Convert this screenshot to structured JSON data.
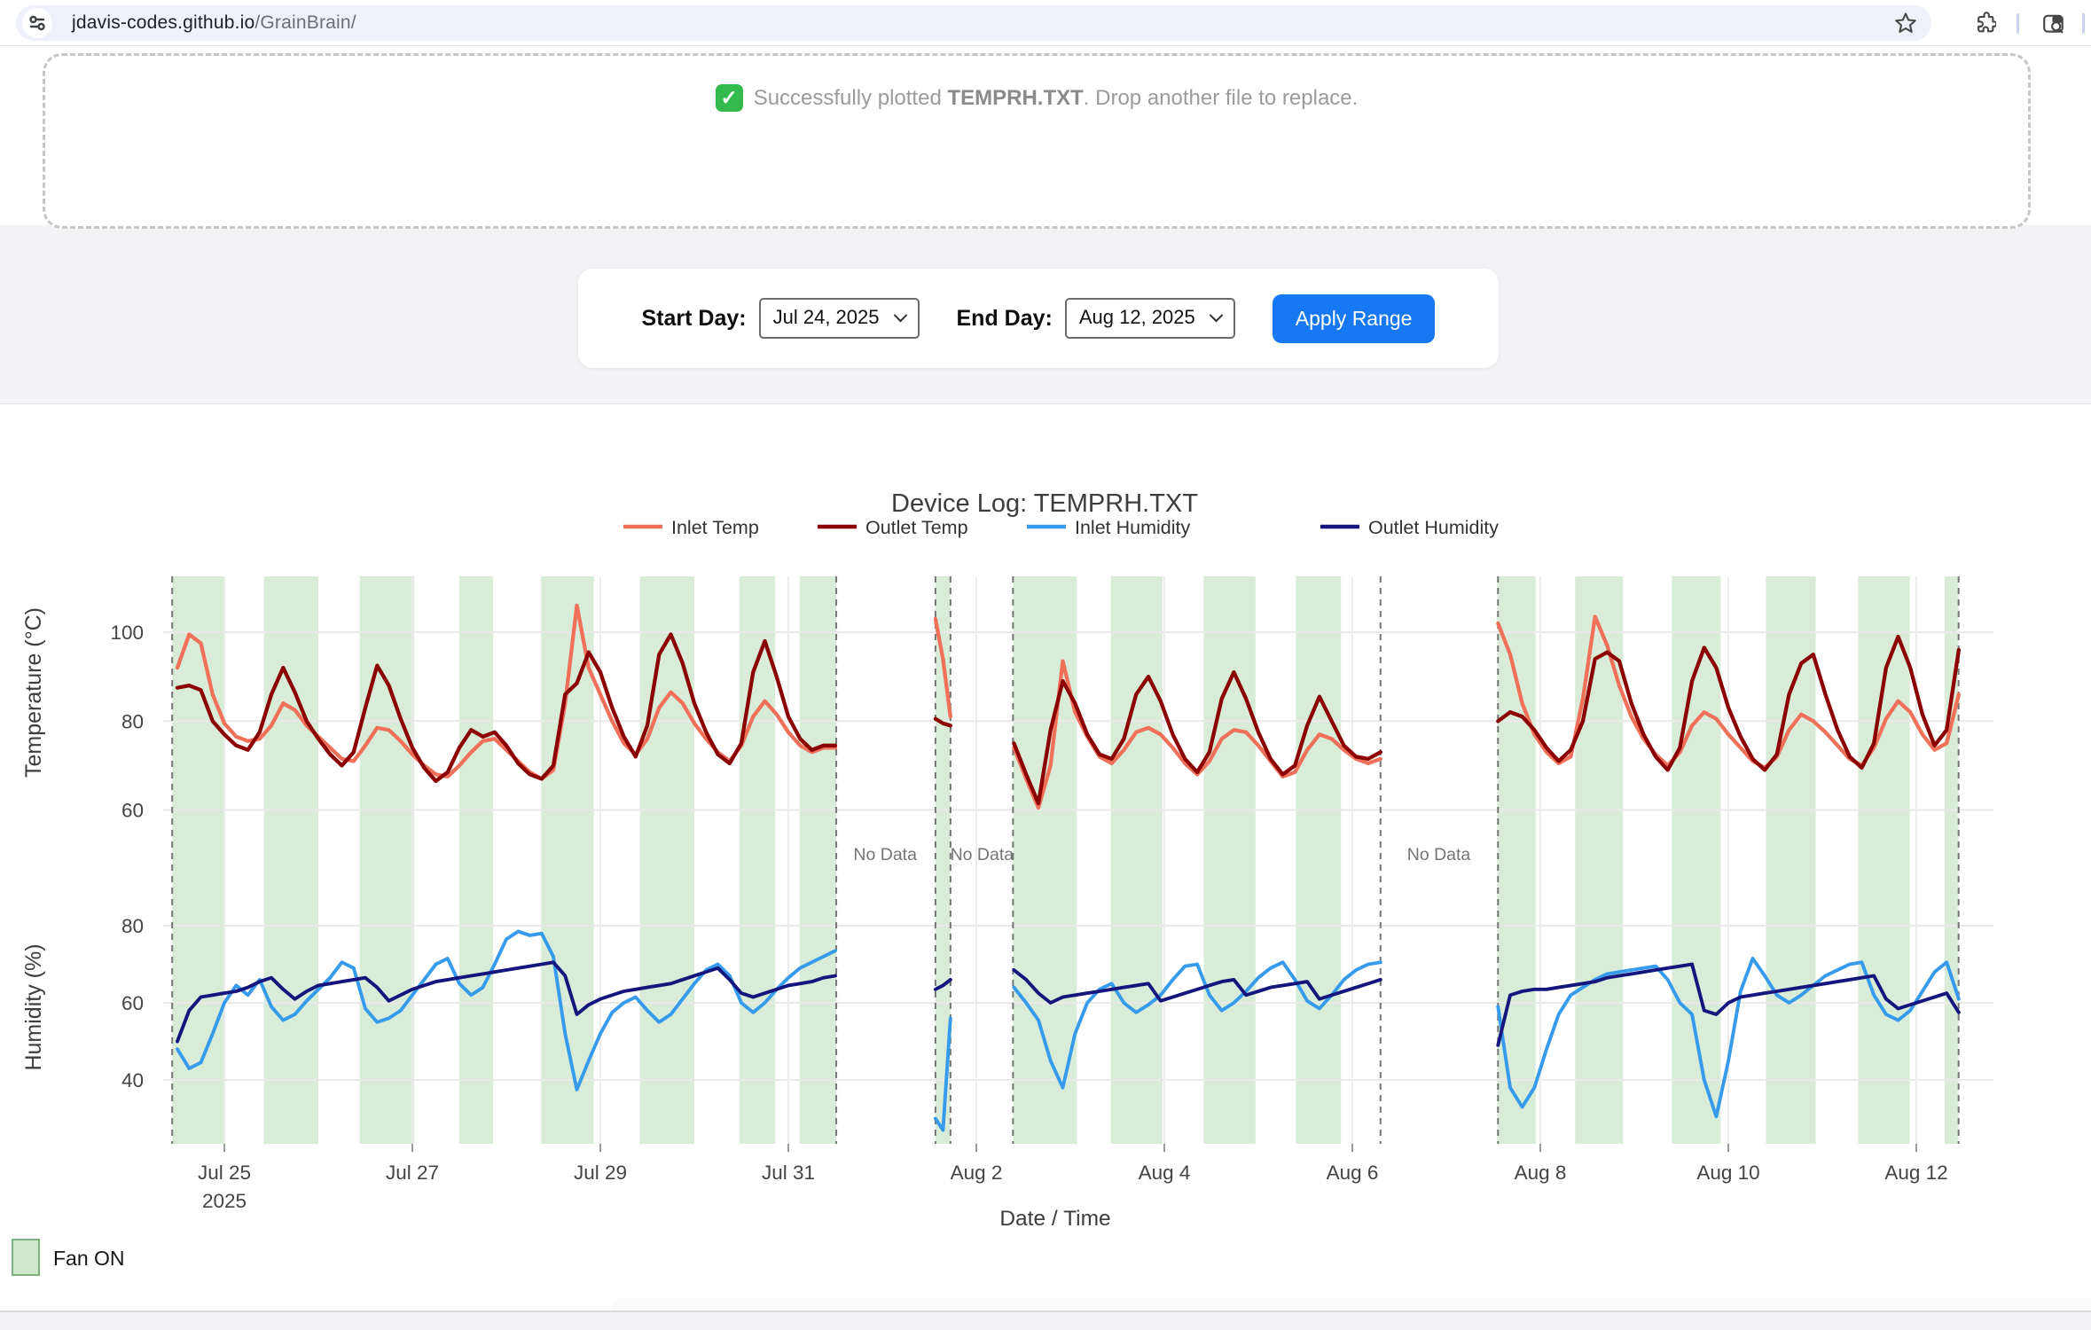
{
  "browser": {
    "url_domain": "jdavis-codes.github.io",
    "url_path": "/GrainBrain/",
    "icons": [
      "site-settings-icon",
      "bookmark-star-icon",
      "extensions-puzzle-icon",
      "tab-search-icon"
    ]
  },
  "dropzone": {
    "check_glyph": "✓",
    "message_prefix": "Successfully plotted ",
    "filename": "TEMPRH.TXT",
    "message_suffix": ". Drop another file to replace."
  },
  "controls": {
    "start_label": "Start Day:",
    "start_value": "Jul 24, 2025",
    "end_label": "End Day:",
    "end_value": "Aug 12, 2025",
    "apply_label": "Apply Range",
    "apply_color": "#1678f2"
  },
  "chart_data": {
    "type": "line",
    "title": "Device Log: TEMPRH.TXT",
    "x_axis": {
      "label": "Date / Time",
      "unit": "days since Jul 24, 2025 00:00",
      "ticks": [
        {
          "day": 1,
          "label": "Jul 25",
          "sublabel": "2025"
        },
        {
          "day": 3,
          "label": "Jul 27"
        },
        {
          "day": 5,
          "label": "Jul 29"
        },
        {
          "day": 7,
          "label": "Jul 31"
        },
        {
          "day": 9,
          "label": "Aug 2"
        },
        {
          "day": 11,
          "label": "Aug 4"
        },
        {
          "day": 13,
          "label": "Aug 6"
        },
        {
          "day": 15,
          "label": "Aug 8"
        },
        {
          "day": 17,
          "label": "Aug 10"
        },
        {
          "day": 19,
          "label": "Aug 12"
        }
      ]
    },
    "y_axes": [
      {
        "label": "Temperature (°C)",
        "tick_labels": [
          100,
          80,
          60
        ],
        "approx_range": [
          53,
          112
        ]
      },
      {
        "label": "Humidity (%)",
        "tick_labels": [
          80,
          60,
          40
        ],
        "approx_range": [
          23,
          90
        ]
      }
    ],
    "grid": true,
    "legend_position": "top-center",
    "series": [
      {
        "key": "inlet_temp",
        "name": "Inlet Temp",
        "color": "#f0705a",
        "axis": "temp"
      },
      {
        "key": "outlet_temp",
        "name": "Outlet Temp",
        "color": "#8b0000",
        "axis": "temp"
      },
      {
        "key": "inlet_humidity",
        "name": "Inlet Humidity",
        "color": "#369bec",
        "axis": "hum"
      },
      {
        "key": "outlet_humidity",
        "name": "Outlet Humidity",
        "color": "#15157e",
        "axis": "hum"
      }
    ],
    "no_data": {
      "label": "No Data",
      "positions_day": [
        8.03,
        9.06,
        13.92
      ]
    },
    "fan": {
      "label": "Fan ON",
      "band_color": "#d9ecd7",
      "swatch_fill": "#cde8cb",
      "swatch_border": "#7db27d",
      "intervals_day": [
        [
          0.445,
          1.0
        ],
        [
          1.42,
          2.0
        ],
        [
          2.44,
          3.02
        ],
        [
          3.5,
          3.86
        ],
        [
          4.37,
          4.93
        ],
        [
          5.42,
          6.0
        ],
        [
          6.48,
          6.86
        ],
        [
          7.12,
          7.51
        ],
        [
          8.565,
          8.725
        ],
        [
          9.39,
          10.07
        ],
        [
          10.43,
          10.98
        ],
        [
          11.42,
          11.97
        ],
        [
          12.4,
          12.88
        ],
        [
          14.54,
          14.95
        ],
        [
          15.37,
          15.88
        ],
        [
          16.4,
          16.92
        ],
        [
          17.4,
          17.93
        ],
        [
          18.38,
          18.93
        ],
        [
          19.3,
          19.45
        ]
      ]
    },
    "panels": [
      {
        "edges": [
          0.445,
          7.51
        ],
        "t0": 0.5,
        "dt": 0.125,
        "values": {
          "outlet_temp": [
            87.5,
            88,
            87,
            80,
            77,
            74.5,
            73.5,
            77.5,
            86,
            92,
            86.5,
            80,
            76,
            72.5,
            70,
            73,
            83,
            92.5,
            88,
            80.5,
            74,
            69.5,
            66.5,
            68.5,
            74,
            78,
            76.5,
            77.5,
            74.5,
            70.5,
            68,
            67,
            70,
            86,
            88.5,
            95.5,
            91,
            83,
            76.5,
            72,
            79,
            95,
            99.5,
            93,
            84,
            77.5,
            72.5,
            70.5,
            75,
            91,
            98,
            90,
            81,
            76,
            73.5,
            74.5,
            74.5
          ],
          "inlet_temp": [
            92,
            99.5,
            97.5,
            86,
            79.5,
            76.5,
            75.5,
            76,
            79,
            84,
            82.5,
            79,
            76.5,
            74,
            71.5,
            71,
            74.5,
            78.5,
            78,
            75.5,
            72.5,
            70,
            68,
            67.5,
            70,
            73,
            75.5,
            76,
            73.5,
            71,
            68.5,
            67,
            69,
            84,
            106,
            92,
            86,
            80,
            75,
            72.5,
            76,
            83,
            86.5,
            84,
            79.5,
            76,
            73,
            71,
            74.5,
            81,
            84.5,
            81.5,
            77.5,
            74.5,
            73,
            74,
            74
          ],
          "outlet_humidity": [
            50,
            58,
            61.5,
            62,
            62.5,
            63,
            64,
            65.5,
            66.5,
            63.5,
            61,
            63,
            64.5,
            65,
            65.5,
            66,
            66.5,
            64,
            60.5,
            62,
            63.5,
            64.5,
            65.5,
            66,
            66.5,
            67,
            67.5,
            68,
            68.5,
            69,
            69.5,
            70,
            70.5,
            67,
            57,
            59.5,
            61,
            62,
            63,
            63.5,
            64,
            64.5,
            65,
            66,
            67,
            68,
            69,
            66,
            62.5,
            61.5,
            62.5,
            63.5,
            64.5,
            65,
            65.5,
            66.5,
            67
          ],
          "inlet_humidity": [
            48,
            43,
            44.5,
            52,
            60,
            64.5,
            62,
            66,
            59,
            55.5,
            57,
            60.5,
            63.5,
            66.5,
            70.5,
            69,
            58.5,
            55,
            56,
            58,
            62,
            66,
            70,
            71.5,
            65,
            62,
            64,
            70,
            76.5,
            78.5,
            77.5,
            78,
            72,
            52,
            37.5,
            45,
            52,
            57.5,
            60,
            61.5,
            58,
            55,
            57,
            61,
            65,
            68.5,
            70,
            67,
            60,
            57.5,
            60,
            63.5,
            66.5,
            69,
            70.5,
            72,
            73.5
          ]
        }
      },
      {
        "edges": [
          8.565,
          8.725
        ],
        "t0": 8.565,
        "dt": 0.08,
        "values": {
          "outlet_temp": [
            80.5,
            79.5,
            79
          ],
          "inlet_temp": [
            103,
            94,
            81
          ],
          "outlet_humidity": [
            63.5,
            64.5,
            66
          ],
          "inlet_humidity": [
            30,
            27,
            56
          ]
        }
      },
      {
        "edges": [
          9.39,
          13.3
        ],
        "t0": 9.4,
        "dt": 0.13,
        "values": {
          "outlet_temp": [
            75,
            68,
            61.5,
            78,
            89,
            84,
            77,
            72.5,
            71.5,
            76,
            86,
            90,
            84.5,
            77,
            71.5,
            68.5,
            73,
            85,
            91,
            85,
            77.5,
            71.5,
            68,
            70,
            79,
            85.5,
            80,
            74.5,
            72,
            71.5,
            73
          ],
          "inlet_temp": [
            74,
            67,
            60.5,
            70,
            93.5,
            82,
            76.5,
            72,
            70.5,
            73.5,
            77.5,
            78.5,
            77,
            74,
            70.5,
            68,
            71,
            76,
            78,
            77.5,
            74.5,
            71,
            67.5,
            68.5,
            73.5,
            77,
            76,
            73.5,
            71.5,
            70.5,
            71.5
          ],
          "outlet_humidity": [
            68.5,
            66,
            62.5,
            60,
            61.5,
            62,
            62.5,
            63,
            63.5,
            64,
            64.5,
            65,
            60.5,
            61.5,
            62.5,
            63.5,
            64.5,
            65.5,
            66,
            62,
            63,
            64,
            64.5,
            65,
            65.5,
            61,
            62,
            63,
            64,
            65,
            66
          ],
          "inlet_humidity": [
            64,
            60,
            55.5,
            45,
            38,
            52,
            60,
            63.5,
            65,
            60,
            57.5,
            59.5,
            62,
            66,
            69.5,
            70,
            62,
            58,
            60,
            63,
            66.5,
            69,
            70.5,
            66,
            60.5,
            58.5,
            62,
            66,
            68.5,
            70,
            70.5
          ]
        }
      },
      {
        "edges": [
          14.55,
          19.45
        ],
        "t0": 14.55,
        "dt": 0.129,
        "values": {
          "outlet_temp": [
            80,
            82,
            81,
            78,
            74,
            71,
            73.5,
            80,
            94,
            95.5,
            93.5,
            84,
            77,
            72,
            69,
            74,
            89,
            96.5,
            92,
            83,
            76.5,
            71.5,
            69,
            72.5,
            86,
            93,
            95,
            86,
            78,
            72,
            69.5,
            75,
            92,
            99,
            92,
            81.5,
            74.5,
            78,
            96
          ],
          "inlet_temp": [
            102,
            95,
            84,
            77,
            73,
            70.5,
            72,
            85,
            103.5,
            97,
            88,
            81,
            76,
            72.5,
            70,
            73,
            79,
            82,
            80.5,
            77,
            74,
            71,
            69.5,
            72,
            78,
            81.5,
            80,
            77.5,
            74.5,
            71.5,
            70,
            74,
            80.5,
            84.5,
            82,
            77,
            73.5,
            75,
            86
          ],
          "outlet_humidity": [
            49,
            62,
            63,
            63.5,
            63.5,
            64,
            64.5,
            65,
            65.5,
            66.5,
            67,
            67.5,
            68,
            68.5,
            69,
            69.5,
            70,
            58,
            57,
            60,
            61.5,
            62,
            62.5,
            63,
            63.5,
            64,
            64.5,
            65,
            65.5,
            66,
            66.5,
            67,
            61,
            58.5,
            59.5,
            60.5,
            61.5,
            62.5,
            57.5
          ],
          "inlet_humidity": [
            59,
            38,
            33,
            38,
            48,
            57,
            62,
            64,
            66,
            67.5,
            68,
            68.5,
            69,
            69.5,
            66,
            60,
            57,
            40,
            30.5,
            45,
            63,
            71.5,
            67,
            62,
            60,
            62,
            64.5,
            67,
            68.5,
            70,
            70.5,
            62,
            57,
            55.5,
            58,
            63,
            68,
            70.5,
            61
          ]
        }
      }
    ]
  }
}
